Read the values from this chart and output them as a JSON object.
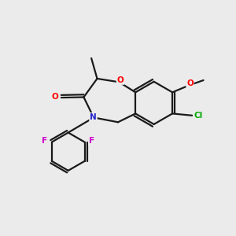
{
  "bg_color": "#ebebeb",
  "bond_color": "#1a1a1a",
  "atom_colors": {
    "O": "#ff0000",
    "N": "#2222cc",
    "F": "#cc00cc",
    "Cl": "#00aa00",
    "C": "#1a1a1a"
  }
}
